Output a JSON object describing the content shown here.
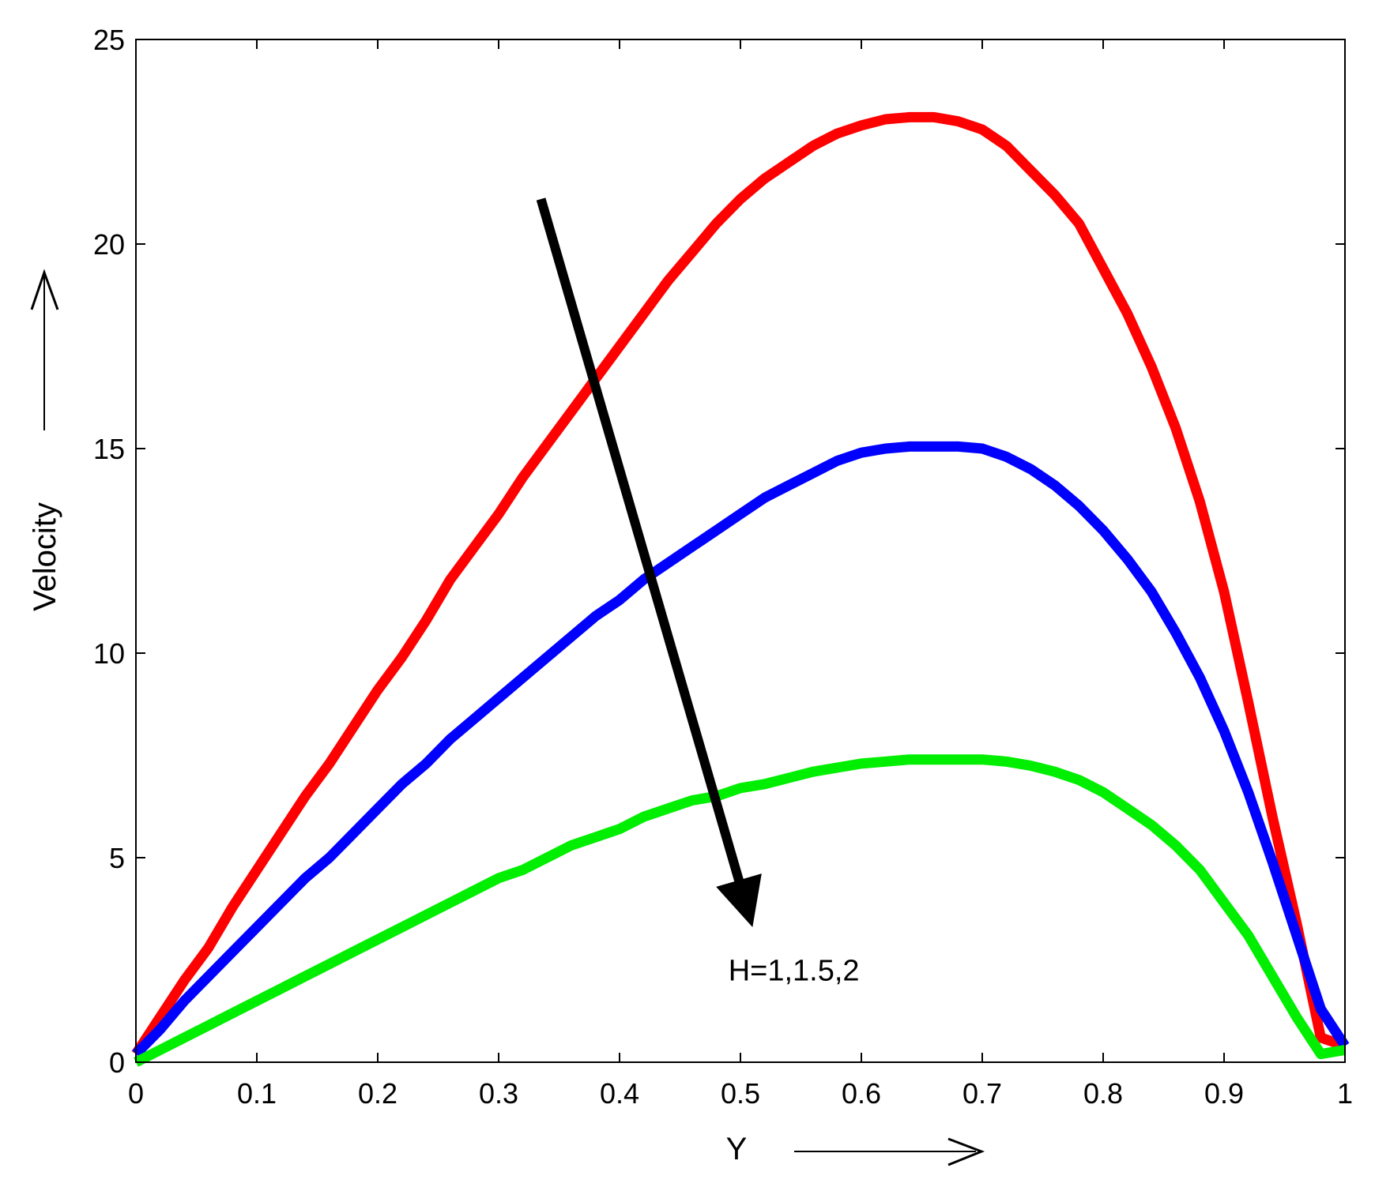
{
  "chart_data": {
    "type": "line",
    "title": "",
    "xlabel": "Y",
    "ylabel": "Velocity",
    "xlim": [
      0,
      1
    ],
    "ylim": [
      0,
      25
    ],
    "xticks": [
      "0",
      "0.1",
      "0.2",
      "0.3",
      "0.4",
      "0.5",
      "0.6",
      "0.7",
      "0.8",
      "0.9",
      "1"
    ],
    "yticks": [
      "0",
      "5",
      "10",
      "15",
      "20",
      "25"
    ],
    "grid": false,
    "x": [
      0,
      0.02,
      0.04,
      0.06,
      0.08,
      0.1,
      0.12,
      0.14,
      0.16,
      0.18,
      0.2,
      0.22,
      0.24,
      0.26,
      0.28,
      0.3,
      0.32,
      0.34,
      0.36,
      0.38,
      0.4,
      0.42,
      0.44,
      0.46,
      0.48,
      0.5,
      0.52,
      0.54,
      0.56,
      0.58,
      0.6,
      0.62,
      0.64,
      0.66,
      0.68,
      0.7,
      0.72,
      0.74,
      0.76,
      0.78,
      0.8,
      0.82,
      0.84,
      0.86,
      0.88,
      0.9,
      0.92,
      0.94,
      0.96,
      0.98,
      1.0
    ],
    "series": [
      {
        "color": "#ff0000",
        "values": [
          0.2,
          1.1,
          2.0,
          2.8,
          3.8,
          4.7,
          5.6,
          6.5,
          7.3,
          8.2,
          9.1,
          9.9,
          10.8,
          11.8,
          12.6,
          13.4,
          14.3,
          15.1,
          15.9,
          16.7,
          17.5,
          18.3,
          19.1,
          19.8,
          20.5,
          21.1,
          21.6,
          22.0,
          22.4,
          22.7,
          22.9,
          23.05,
          23.1,
          23.1,
          23.0,
          22.8,
          22.4,
          21.8,
          21.2,
          20.5,
          19.4,
          18.3,
          17.0,
          15.5,
          13.7,
          11.5,
          8.8,
          6.0,
          3.4,
          0.6,
          0.4
        ]
      },
      {
        "color": "#0000ff",
        "values": [
          0.2,
          0.8,
          1.5,
          2.1,
          2.7,
          3.3,
          3.9,
          4.5,
          5.0,
          5.6,
          6.2,
          6.8,
          7.3,
          7.9,
          8.4,
          8.9,
          9.4,
          9.9,
          10.4,
          10.9,
          11.3,
          11.8,
          12.2,
          12.6,
          13.0,
          13.4,
          13.8,
          14.1,
          14.4,
          14.7,
          14.9,
          15.0,
          15.05,
          15.05,
          15.05,
          15.0,
          14.8,
          14.5,
          14.1,
          13.6,
          13.0,
          12.3,
          11.5,
          10.5,
          9.4,
          8.1,
          6.6,
          4.9,
          3.1,
          1.3,
          0.4
        ]
      },
      {
        "color": "#00ee00",
        "values": [
          0.0,
          0.3,
          0.6,
          0.9,
          1.2,
          1.5,
          1.8,
          2.1,
          2.4,
          2.7,
          3.0,
          3.3,
          3.6,
          3.9,
          4.2,
          4.5,
          4.7,
          5.0,
          5.3,
          5.5,
          5.7,
          6.0,
          6.2,
          6.4,
          6.5,
          6.7,
          6.8,
          6.95,
          7.1,
          7.2,
          7.3,
          7.35,
          7.4,
          7.4,
          7.4,
          7.4,
          7.35,
          7.25,
          7.1,
          6.9,
          6.6,
          6.2,
          5.8,
          5.3,
          4.7,
          3.9,
          3.1,
          2.1,
          1.1,
          0.2,
          0.3
        ]
      }
    ],
    "annotation": {
      "text": "H=1,1.5,2",
      "arrow_from": [
        0.335,
        21.1
      ],
      "arrow_to": [
        0.51,
        3.3
      ],
      "text_pos": [
        0.49,
        2.0
      ]
    }
  }
}
